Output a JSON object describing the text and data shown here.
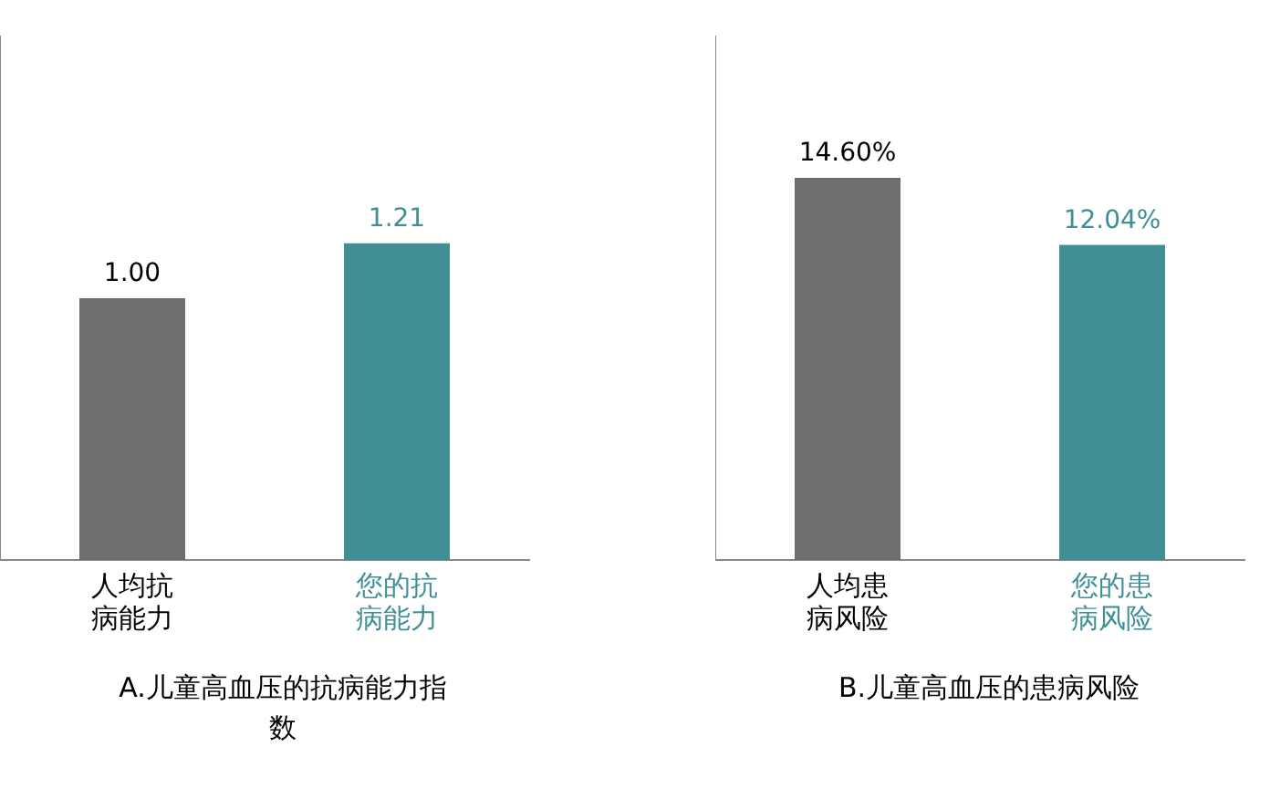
{
  "chart_data": [
    {
      "type": "bar",
      "title": "A.儿童高血压的抗病能力指数",
      "categories": [
        "人均抗病能力",
        "您的抗病能力"
      ],
      "values": [
        1.0,
        1.21
      ],
      "value_labels": [
        "1.00",
        "1.21"
      ],
      "colors": [
        "#6e6e6e",
        "#3f8f95"
      ],
      "ylim": [
        0,
        2
      ],
      "tick_labels": "x",
      "grid": false,
      "legend": false
    },
    {
      "type": "bar",
      "title": "B.儿童高血压的患病风险",
      "categories": [
        "人均患病风险",
        "您的患病风险"
      ],
      "values": [
        14.6,
        12.04
      ],
      "value_labels": [
        "14.60%",
        "12.04%"
      ],
      "colors": [
        "#6e6e6e",
        "#3f8f95"
      ],
      "ylim": [
        0,
        20
      ],
      "tick_labels": "x",
      "grid": false,
      "legend": false
    }
  ]
}
